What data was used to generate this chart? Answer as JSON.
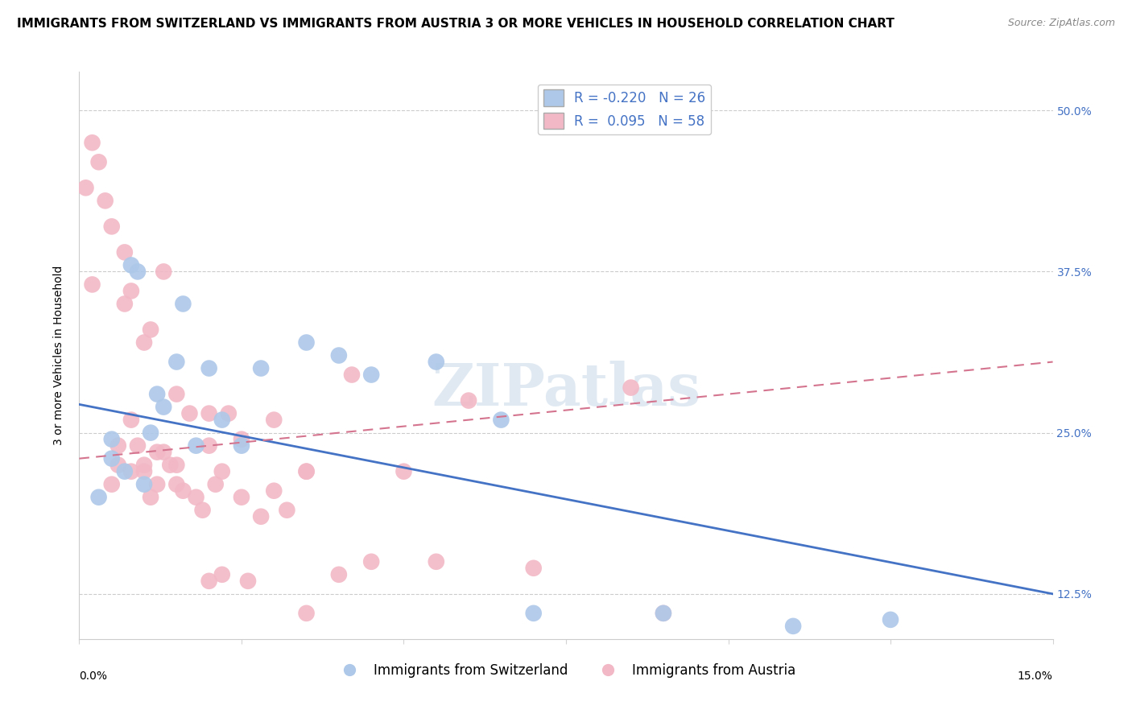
{
  "title": "IMMIGRANTS FROM SWITZERLAND VS IMMIGRANTS FROM AUSTRIA 3 OR MORE VEHICLES IN HOUSEHOLD CORRELATION CHART",
  "source": "Source: ZipAtlas.com",
  "ylabel": "3 or more Vehicles in Household",
  "xlabel_bottom_left": "0.0%",
  "xlabel_bottom_right": "15.0%",
  "xmin": 0.0,
  "xmax": 15.0,
  "ymin": 9.0,
  "ymax": 53.0,
  "yticks": [
    12.5,
    25.0,
    37.5,
    50.0
  ],
  "ytick_labels": [
    "12.5%",
    "25.0%",
    "37.5%",
    "50.0%"
  ],
  "legend_r_blue": "-0.220",
  "legend_n_blue": "26",
  "legend_r_pink": "0.095",
  "legend_n_pink": "58",
  "legend_label_blue": "Immigrants from Switzerland",
  "legend_label_pink": "Immigrants from Austria",
  "blue_color": "#adc8e8",
  "pink_color": "#f2b8c6",
  "blue_line_color": "#4472c4",
  "pink_line_color": "#d4748e",
  "watermark_text": "ZIPatlas",
  "blue_trend_x0": 0.0,
  "blue_trend_y0": 27.2,
  "blue_trend_x1": 15.0,
  "blue_trend_y1": 12.5,
  "pink_trend_x0": 0.0,
  "pink_trend_y0": 23.0,
  "pink_trend_x1": 15.0,
  "pink_trend_y1": 30.5,
  "blue_x": [
    0.3,
    0.5,
    0.5,
    0.7,
    0.8,
    0.9,
    1.0,
    1.1,
    1.2,
    1.3,
    1.5,
    1.6,
    1.8,
    2.0,
    2.2,
    2.5,
    2.8,
    3.5,
    4.0,
    4.5,
    5.5,
    6.5,
    7.0,
    9.0,
    11.0,
    12.5
  ],
  "blue_y": [
    20.0,
    23.0,
    24.5,
    22.0,
    38.0,
    37.5,
    21.0,
    25.0,
    28.0,
    27.0,
    30.5,
    35.0,
    24.0,
    30.0,
    26.0,
    24.0,
    30.0,
    32.0,
    31.0,
    29.5,
    30.5,
    26.0,
    11.0,
    11.0,
    10.0,
    10.5
  ],
  "pink_x": [
    0.1,
    0.2,
    0.2,
    0.3,
    0.4,
    0.5,
    0.5,
    0.6,
    0.7,
    0.7,
    0.8,
    0.8,
    0.9,
    1.0,
    1.0,
    1.1,
    1.1,
    1.2,
    1.3,
    1.3,
    1.4,
    1.5,
    1.5,
    1.6,
    1.7,
    1.8,
    1.9,
    2.0,
    2.0,
    2.1,
    2.2,
    2.2,
    2.3,
    2.5,
    2.6,
    2.8,
    3.0,
    3.0,
    3.2,
    3.5,
    3.5,
    4.0,
    4.2,
    4.5,
    5.0,
    5.5,
    6.0,
    7.0,
    8.5,
    9.0,
    0.6,
    0.8,
    1.0,
    1.2,
    1.5,
    2.0,
    2.5,
    3.5
  ],
  "pink_y": [
    44.0,
    47.5,
    36.5,
    46.0,
    43.0,
    21.0,
    41.0,
    22.5,
    35.0,
    39.0,
    22.0,
    36.0,
    24.0,
    22.0,
    32.0,
    20.0,
    33.0,
    21.0,
    23.5,
    37.5,
    22.5,
    21.0,
    28.0,
    20.5,
    26.5,
    20.0,
    19.0,
    24.0,
    13.5,
    21.0,
    14.0,
    22.0,
    26.5,
    20.0,
    13.5,
    18.5,
    20.5,
    26.0,
    19.0,
    22.0,
    11.0,
    14.0,
    29.5,
    15.0,
    22.0,
    15.0,
    27.5,
    14.5,
    28.5,
    11.0,
    24.0,
    26.0,
    22.5,
    23.5,
    22.5,
    26.5,
    24.5,
    22.0
  ],
  "title_fontsize": 11,
  "source_fontsize": 9,
  "axis_label_fontsize": 10,
  "tick_fontsize": 10,
  "legend_fontsize": 12
}
